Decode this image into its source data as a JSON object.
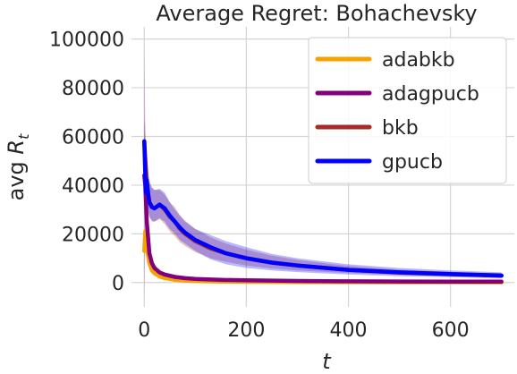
{
  "chart_data": {
    "type": "line",
    "title": "Average Regret: Bohachevsky",
    "xlabel": "t",
    "ylabel_prefix": "avg ",
    "ylabel_var": "R",
    "ylabel_sub": "t",
    "xlim": [
      -25,
      725
    ],
    "ylim": [
      -10000,
      105000
    ],
    "xticks": [
      0,
      200,
      400,
      600
    ],
    "yticks": [
      0,
      20000,
      40000,
      60000,
      80000,
      100000
    ],
    "grid": true,
    "legend_position": "top-right",
    "colors": {
      "adabkb": "#f5a300",
      "adagpucb": "#800080",
      "bkb": "#a52a2a",
      "gpucb": "#0000ff"
    },
    "series": [
      {
        "name": "adabkb",
        "color": "#f5a300",
        "x": [
          0,
          2,
          5,
          10,
          15,
          20,
          30,
          40,
          60,
          80,
          100,
          150,
          200,
          300,
          400,
          500,
          600,
          700
        ],
        "y": [
          13000,
          21000,
          14000,
          8000,
          5000,
          3800,
          2500,
          1800,
          1100,
          800,
          600,
          400,
          300,
          200,
          150,
          120,
          100,
          80
        ],
        "lower": [
          12000,
          19000,
          12500,
          7200,
          4500,
          3400,
          2200,
          1600,
          1000,
          700,
          550,
          350,
          250,
          180,
          130,
          100,
          80,
          60
        ],
        "upper": [
          14000,
          23000,
          15500,
          8800,
          5500,
          4200,
          2800,
          2000,
          1200,
          900,
          650,
          450,
          350,
          220,
          170,
          140,
          120,
          100
        ]
      },
      {
        "name": "adagpucb",
        "color": "#800080",
        "x": [
          0,
          2,
          5,
          10,
          15,
          20,
          30,
          40,
          60,
          80,
          100,
          150,
          200,
          300,
          400,
          500,
          600,
          700
        ],
        "y": [
          44000,
          40000,
          25000,
          12000,
          8000,
          6000,
          4200,
          3300,
          2300,
          1800,
          1500,
          1100,
          900,
          650,
          520,
          450,
          400,
          360
        ],
        "lower": [
          -6000,
          15000,
          17000,
          10000,
          7000,
          5300,
          3800,
          3000,
          2100,
          1650,
          1400,
          1000,
          820,
          600,
          480,
          410,
          370,
          330
        ],
        "upper": [
          97000,
          65000,
          33000,
          14000,
          9000,
          6700,
          4600,
          3600,
          2500,
          1950,
          1600,
          1200,
          980,
          700,
          560,
          490,
          430,
          390
        ]
      },
      {
        "name": "bkb",
        "color": "#a52a2a",
        "x": [
          0,
          5,
          10,
          15,
          20,
          30,
          40,
          50,
          60,
          70,
          80,
          100,
          130,
          160,
          200,
          250,
          300,
          400,
          500,
          600,
          700
        ],
        "y": [
          58000,
          40000,
          33000,
          31000,
          30500,
          32000,
          30000,
          27000,
          25000,
          22000,
          20000,
          17000,
          14000,
          12000,
          10000,
          8200,
          7000,
          5200,
          4100,
          3400,
          2800
        ],
        "lower": [
          48000,
          32000,
          27000,
          25000,
          25000,
          26000,
          24000,
          21000,
          19000,
          16500,
          15000,
          12500,
          10000,
          8500,
          7000,
          5800,
          5000,
          3900,
          3100,
          2500,
          2100
        ],
        "upper": [
          68000,
          52000,
          42000,
          39000,
          38000,
          38000,
          36000,
          33000,
          31000,
          27500,
          25500,
          22000,
          18500,
          16000,
          13500,
          11000,
          9300,
          6800,
          5300,
          4400,
          3600
        ]
      },
      {
        "name": "gpucb",
        "color": "#0000ff",
        "x": [
          0,
          3,
          5,
          8,
          10,
          15,
          20,
          30,
          40,
          50,
          60,
          70,
          80,
          100,
          130,
          160,
          200,
          250,
          300,
          400,
          500,
          600,
          700
        ],
        "y": [
          58000,
          37000,
          42000,
          36000,
          33000,
          31000,
          30500,
          32000,
          30500,
          27500,
          25000,
          22500,
          20500,
          17500,
          14500,
          12000,
          10000,
          8200,
          7000,
          5200,
          4200,
          3500,
          2900
        ],
        "lower": [
          50000,
          30000,
          34000,
          29000,
          27000,
          25500,
          25000,
          26500,
          25000,
          22000,
          20000,
          17500,
          16000,
          13000,
          9500,
          7500,
          6000,
          5000,
          4300,
          3300,
          2600,
          2200,
          1800
        ],
        "upper": [
          66000,
          48000,
          52000,
          44000,
          41000,
          39000,
          38000,
          38500,
          37000,
          33000,
          30000,
          27500,
          25000,
          22000,
          19500,
          17000,
          14500,
          11800,
          10000,
          7500,
          6000,
          5000,
          4200
        ]
      }
    ]
  }
}
